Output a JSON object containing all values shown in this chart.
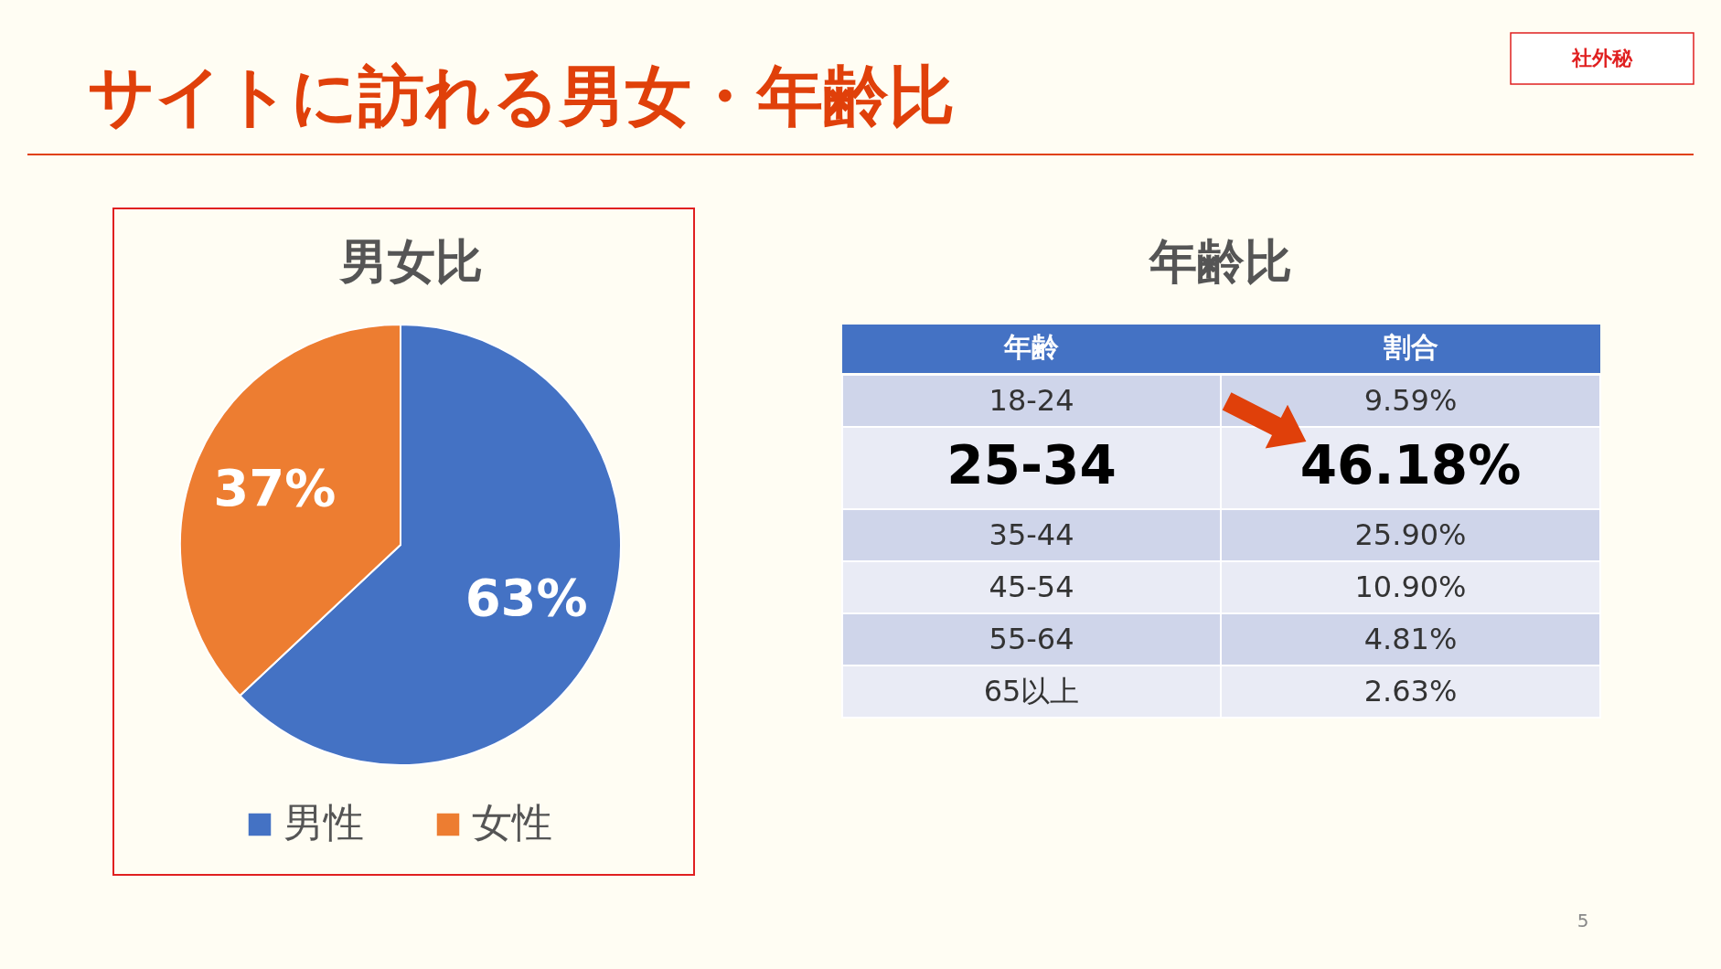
{
  "chart_data": [
    {
      "type": "other",
      "title": "サイトに訪れる男女・年齢比",
      "annotations": [
        "社外秘",
        "5"
      ]
    },
    {
      "type": "pie",
      "title": "男女比",
      "categories": [
        "男性",
        "女性"
      ],
      "values": [
        63,
        37
      ],
      "colors": [
        "#4472c4",
        "#ed7d31"
      ],
      "value_labels": [
        "63%",
        "37%"
      ],
      "legend": "bottom"
    },
    {
      "type": "other",
      "title": "年齢比",
      "xlabel": "年齢",
      "ylabel": "割合",
      "categories": [
        "18-24",
        "25-34",
        "35-44",
        "45-54",
        "55-64",
        "65以上"
      ],
      "values": [
        9.59,
        46.18,
        25.9,
        10.9,
        4.81,
        2.63
      ],
      "value_labels": [
        "9.59%",
        "46.18%",
        "25.90%",
        "10.90%",
        "4.81%",
        "2.63%"
      ]
    }
  ]
}
